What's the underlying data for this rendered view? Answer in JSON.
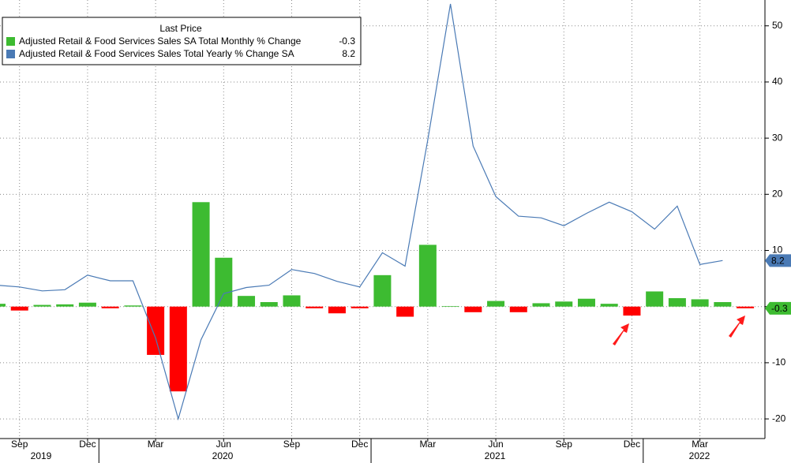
{
  "chart_data": {
    "type": "bar",
    "legend_title": "Last Price",
    "categories": [
      null,
      "Sep",
      null,
      null,
      "Dec",
      null,
      null,
      "Mar",
      null,
      null,
      "Jun",
      null,
      null,
      "Sep",
      null,
      null,
      "Dec",
      null,
      null,
      "Mar",
      null,
      null,
      "Jun",
      null,
      null,
      "Sep",
      null,
      null,
      "Dec",
      null,
      null,
      "Mar",
      null,
      null
    ],
    "years": [
      "2019",
      "2020",
      "2021",
      "2022"
    ],
    "series": [
      {
        "name": "Adjusted Retail & Food Services Sales SA Total Monthly % Change",
        "type": "bar",
        "color": "#3dbb31",
        "negative_color": "#ff0000",
        "last_value": -0.3,
        "values": [
          0.5,
          -0.7,
          0.3,
          0.4,
          0.7,
          -0.3,
          0.2,
          -8.6,
          -15.1,
          18.6,
          8.7,
          1.9,
          0.8,
          2.0,
          -0.3,
          -1.2,
          -0.3,
          5.6,
          -1.8,
          11.0,
          0.1,
          -1.0,
          1.0,
          -1.0,
          0.6,
          0.9,
          1.4,
          0.5,
          -1.6,
          2.7,
          1.5,
          1.3,
          0.8,
          -0.3
        ]
      },
      {
        "name": "Adjusted Retail & Food Services Sales Total Yearly % Change SA",
        "type": "line",
        "color": "#4a7ab5",
        "last_value": 8.2,
        "values": [
          3.8,
          3.5,
          2.8,
          3.0,
          5.6,
          4.6,
          4.6,
          -5.6,
          -20.0,
          -5.9,
          2.3,
          3.4,
          3.8,
          6.6,
          5.9,
          4.5,
          3.5,
          9.6,
          7.2,
          29.7,
          53.9,
          28.6,
          19.6,
          16.1,
          15.8,
          14.4,
          16.6,
          18.6,
          16.9,
          13.8,
          17.9,
          7.5,
          8.2,
          null
        ]
      }
    ],
    "ylim": [
      -23.5,
      54.6
    ],
    "yticks": [
      -20,
      -10,
      0,
      10,
      20,
      30,
      40,
      50
    ],
    "grid": true
  }
}
